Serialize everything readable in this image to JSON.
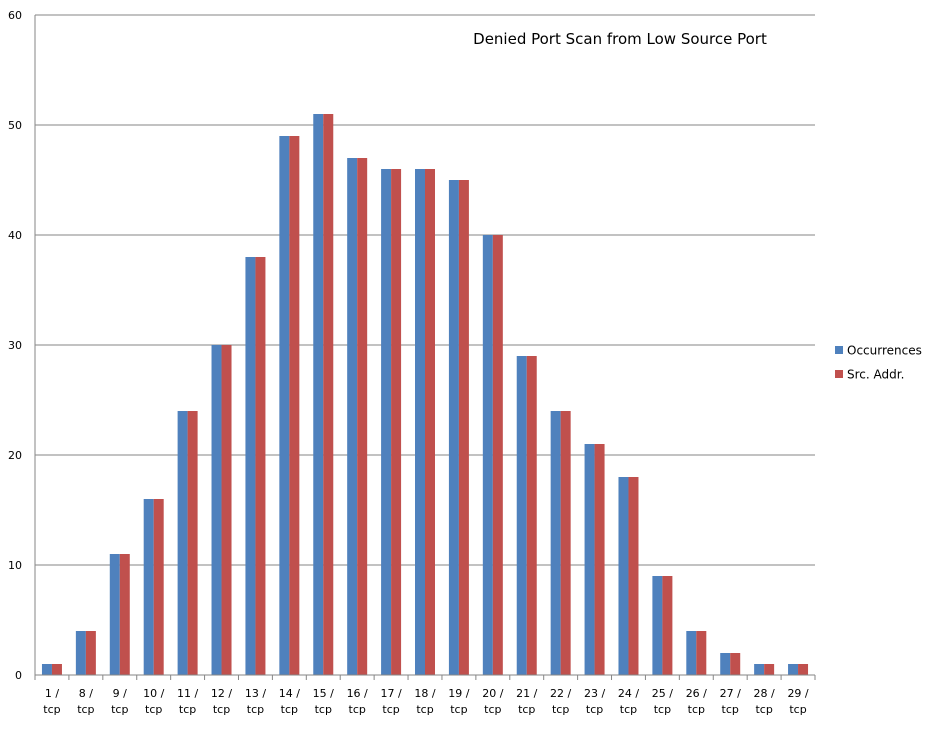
{
  "chart_data": {
    "type": "bar",
    "title": "Denied Port Scan from Low Source Port",
    "xlabel": "",
    "ylabel": "",
    "ylim": [
      0,
      60
    ],
    "y_ticks": [
      0,
      10,
      20,
      30,
      40,
      50,
      60
    ],
    "grid": true,
    "legend_position": "right",
    "categories": [
      [
        "1 /",
        "tcp"
      ],
      [
        "8 /",
        "tcp"
      ],
      [
        "9 /",
        "tcp"
      ],
      [
        "10 /",
        "tcp"
      ],
      [
        "11 /",
        "tcp"
      ],
      [
        "12 /",
        "tcp"
      ],
      [
        "13 /",
        "tcp"
      ],
      [
        "14 /",
        "tcp"
      ],
      [
        "15 /",
        "tcp"
      ],
      [
        "16 /",
        "tcp"
      ],
      [
        "17 /",
        "tcp"
      ],
      [
        "18 /",
        "tcp"
      ],
      [
        "19 /",
        "tcp"
      ],
      [
        "20 /",
        "tcp"
      ],
      [
        "21 /",
        "tcp"
      ],
      [
        "22 /",
        "tcp"
      ],
      [
        "23 /",
        "tcp"
      ],
      [
        "24 /",
        "tcp"
      ],
      [
        "25 /",
        "tcp"
      ],
      [
        "26 /",
        "tcp"
      ],
      [
        "27 /",
        "tcp"
      ],
      [
        "28 /",
        "tcp"
      ],
      [
        "29 /",
        "tcp"
      ]
    ],
    "series": [
      {
        "name": "Occurrences",
        "color": "#4f81bd",
        "values": [
          1,
          4,
          11,
          16,
          24,
          30,
          38,
          49,
          51,
          47,
          46,
          46,
          45,
          40,
          29,
          24,
          21,
          18,
          9,
          4,
          2,
          1,
          1
        ]
      },
      {
        "name": "Src. Addr.",
        "color": "#c0504d",
        "values": [
          1,
          4,
          11,
          16,
          24,
          30,
          38,
          49,
          51,
          47,
          46,
          46,
          45,
          40,
          29,
          24,
          21,
          18,
          9,
          4,
          2,
          1,
          1
        ]
      }
    ],
    "colors": {
      "grid": "#868686",
      "axis": "#868686"
    }
  }
}
